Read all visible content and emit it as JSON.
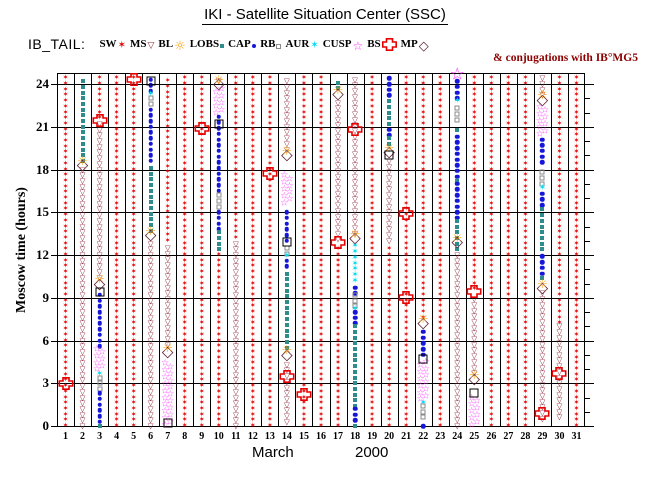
{
  "header": {
    "title": "IKI - Satellite Situation Center (SSC)"
  },
  "legend": {
    "prefix": "IB_TAIL:",
    "note": "& conjugations with IB°MG5",
    "items": [
      {
        "label": "SW",
        "type": "SW"
      },
      {
        "label": "MS",
        "type": "MS"
      },
      {
        "label": "BL",
        "type": "BL"
      },
      {
        "label": "LOBS",
        "type": "LOBS"
      },
      {
        "label": "CAP",
        "type": "CAP"
      },
      {
        "label": "RB",
        "type": "RB"
      },
      {
        "label": "AUR",
        "type": "AUR"
      },
      {
        "label": "CUSP",
        "type": "CUSP"
      },
      {
        "label": "BS",
        "type": "BS"
      },
      {
        "label": "MP",
        "type": "MP"
      }
    ]
  },
  "chart_data": {
    "type": "scatter",
    "title": "IKI - Satellite Situation Center (SSC)",
    "xlabel": {
      "month": "March",
      "year": "2000"
    },
    "ylabel": "Moscow time (hours)",
    "x_ticks": [
      1,
      2,
      3,
      4,
      5,
      6,
      7,
      8,
      9,
      10,
      11,
      12,
      13,
      14,
      15,
      16,
      17,
      18,
      19,
      20,
      21,
      22,
      23,
      24,
      25,
      26,
      27,
      28,
      29,
      30,
      31
    ],
    "y_ticks": [
      0,
      3,
      6,
      9,
      12,
      15,
      18,
      21,
      24
    ],
    "xlim": [
      1,
      31
    ],
    "ylim": [
      0,
      24.8
    ],
    "grid": true,
    "legend_position": "top",
    "symbol_colors": {
      "SW": "#e60000",
      "MS": "#8b2439",
      "BL": "#ff9c00",
      "LOBS": "#2e8c8c",
      "CAP": "#1616d8",
      "RB": "#8a8a8a",
      "AUR": "#00dcf0",
      "CUSP": "#fa28fa",
      "BS": "#e60000",
      "MP": "#5c2233",
      "BLK": "#000000"
    },
    "days": [
      {
        "day": 1,
        "segments": [
          [
            "SW",
            0,
            24.4
          ]
        ],
        "events": [
          [
            "BS",
            2.9
          ]
        ]
      },
      {
        "day": 2,
        "segments": [
          [
            "LOBS",
            18.6,
            24.4
          ],
          [
            "MS",
            0,
            18.1
          ]
        ],
        "events": [
          [
            "MP",
            18.3
          ],
          [
            "BL",
            18.6
          ]
        ]
      },
      {
        "day": 3,
        "segments": [
          [
            "SW",
            21.6,
            24.4
          ],
          [
            "MS",
            10.4,
            21.2
          ],
          [
            "CAP",
            5.6,
            9.2
          ],
          [
            "CUSP",
            3.9,
            5.4
          ],
          [
            "AUR",
            3.65,
            3.65
          ],
          [
            "RB",
            2.6,
            3.5
          ],
          [
            "CAP",
            0.3,
            2.4
          ],
          [
            "LOBS",
            0,
            0.2
          ]
        ],
        "events": [
          [
            "BS",
            21.3
          ],
          [
            "MP",
            10.0
          ],
          [
            "BL",
            10.3
          ],
          [
            "BLK",
            9.4
          ]
        ]
      },
      {
        "day": 4,
        "segments": [
          [
            "SW",
            0,
            24.4
          ]
        ],
        "events": []
      },
      {
        "day": 5,
        "segments": [
          [
            "SW",
            0,
            24.4
          ]
        ],
        "events": [
          [
            "BS",
            24.2
          ]
        ]
      },
      {
        "day": 6,
        "segments": [
          [
            "CAP",
            23.5,
            24.4
          ],
          [
            "AUR",
            23.3,
            23.3
          ],
          [
            "RB",
            22.6,
            23.1
          ],
          [
            "CAP",
            18.6,
            22.4
          ],
          [
            "LOBS",
            13.7,
            18.4
          ],
          [
            "MS",
            0,
            13.1
          ]
        ],
        "events": [
          [
            "BLK",
            24.2
          ],
          [
            "MP",
            13.4
          ],
          [
            "BL",
            13.7
          ]
        ]
      },
      {
        "day": 7,
        "segments": [
          [
            "SW",
            13,
            24.4
          ],
          [
            "MS",
            5.7,
            12.8
          ],
          [
            "CUSP",
            0,
            4.5
          ]
        ],
        "events": [
          [
            "MP",
            5.2
          ],
          [
            "BL",
            5.5
          ],
          [
            "BLK",
            0.2
          ]
        ]
      },
      {
        "day": 8,
        "segments": [
          [
            "SW",
            0,
            24.4
          ]
        ],
        "events": []
      },
      {
        "day": 9,
        "segments": [
          [
            "SW",
            0,
            24.4
          ]
        ],
        "events": [
          [
            "BS",
            20.8
          ]
        ]
      },
      {
        "day": 10,
        "segments": [
          [
            "MS",
            24.2,
            24.5
          ],
          [
            "CUSP",
            21.9,
            23.6
          ],
          [
            "CAP",
            16.5,
            21.7
          ],
          [
            "RB",
            15.4,
            16.3
          ],
          [
            "CAP",
            13.8,
            15.2
          ],
          [
            "LOBS",
            12.4,
            13.6
          ],
          [
            "SW",
            0,
            12.1
          ]
        ],
        "events": [
          [
            "MP",
            24.0
          ],
          [
            "BL",
            24.25
          ],
          [
            "BLK",
            21.2
          ]
        ]
      },
      {
        "day": 11,
        "segments": [
          [
            "SW",
            13.2,
            24.4
          ],
          [
            "MS",
            0,
            12.9
          ]
        ],
        "events": []
      },
      {
        "day": 12,
        "segments": [
          [
            "SW",
            0,
            24.4
          ]
        ],
        "events": []
      },
      {
        "day": 13,
        "segments": [
          [
            "SW",
            0,
            24.4
          ]
        ],
        "events": [
          [
            "BS",
            17.6
          ]
        ]
      },
      {
        "day": 14,
        "segments": [
          [
            "MS",
            19.4,
            24.4
          ],
          [
            "CUSP",
            15.6,
            17.7
          ],
          [
            "CAP",
            13,
            15.2
          ],
          [
            "RB",
            12.1,
            12.8
          ],
          [
            "AUR",
            11.9,
            11.9
          ],
          [
            "CAP",
            11.2,
            11.7
          ],
          [
            "LOBS",
            5.5,
            11
          ],
          [
            "MS",
            0.3,
            4.6
          ]
        ],
        "events": [
          [
            "MP",
            19.0
          ],
          [
            "BL",
            19.3
          ],
          [
            "BLK",
            12.9
          ],
          [
            "MP",
            5.0
          ],
          [
            "BL",
            5.3
          ],
          [
            "BS",
            3.4
          ]
        ]
      },
      {
        "day": 15,
        "segments": [
          [
            "SW",
            0,
            24.4
          ]
        ],
        "events": [
          [
            "BS",
            2.1
          ]
        ]
      },
      {
        "day": 16,
        "segments": [
          [
            "SW",
            0,
            24.4
          ]
        ],
        "events": []
      },
      {
        "day": 17,
        "segments": [
          [
            "LOBS",
            23.7,
            24.4
          ],
          [
            "MS",
            13.1,
            23
          ],
          [
            "SW",
            0,
            12.5
          ]
        ],
        "events": [
          [
            "MP",
            23.3
          ],
          [
            "BL",
            23.6
          ],
          [
            "BS",
            12.8
          ]
        ]
      },
      {
        "day": 18,
        "segments": [
          [
            "MS",
            13.5,
            24.4
          ],
          [
            "AUR",
            10.2,
            12.7
          ],
          [
            "CAP",
            9.3,
            10
          ],
          [
            "RB",
            8.4,
            9.2
          ],
          [
            "AUR",
            8.2,
            8.2
          ],
          [
            "CAP",
            7.2,
            8
          ],
          [
            "LOBS",
            1.4,
            7
          ],
          [
            "CAP",
            0.4,
            1.2
          ],
          [
            "LOBS",
            0,
            0.2
          ]
        ],
        "events": [
          [
            "BS",
            20.7
          ],
          [
            "MP",
            13.2
          ],
          [
            "BL",
            13.5
          ]
        ]
      },
      {
        "day": 19,
        "segments": [
          [
            "SW",
            0,
            24.4
          ]
        ],
        "events": []
      },
      {
        "day": 20,
        "segments": [
          [
            "CAP",
            23.2,
            24.4
          ],
          [
            "LOBS",
            21.2,
            23
          ],
          [
            "CAP",
            20.4,
            21
          ],
          [
            "LOBS",
            19.8,
            20.2
          ],
          [
            "MS",
            13,
            18.7
          ],
          [
            "SW",
            0,
            12.7
          ]
        ],
        "events": [
          [
            "MP",
            19.2
          ],
          [
            "BL",
            19.5
          ],
          [
            "BLK",
            19.0
          ]
        ]
      },
      {
        "day": 21,
        "segments": [
          [
            "SW",
            0,
            24.4
          ]
        ],
        "events": [
          [
            "BS",
            14.8
          ],
          [
            "BS",
            8.9
          ]
        ]
      },
      {
        "day": 22,
        "segments": [
          [
            "SW",
            7.6,
            24.4
          ],
          [
            "CAP",
            5,
            6.6
          ],
          [
            "CUSP",
            1.8,
            4.5
          ],
          [
            "AUR",
            1.6,
            1.6
          ],
          [
            "RB",
            0.6,
            1.4
          ],
          [
            "CAP",
            0,
            0.35
          ]
        ],
        "events": [
          [
            "MP",
            7.2
          ],
          [
            "BL",
            7.5
          ],
          [
            "BLK",
            4.7
          ]
        ]
      },
      {
        "day": 23,
        "segments": [
          [
            "SW",
            0,
            24.4
          ]
        ],
        "events": []
      },
      {
        "day": 24,
        "segments": [
          [
            "CAP",
            23,
            24.2
          ],
          [
            "AUR",
            22.8,
            22.8
          ],
          [
            "RB",
            21.5,
            22.5
          ],
          [
            "LOBS",
            20.8,
            21
          ],
          [
            "CAP",
            17.5,
            20.6
          ],
          [
            "LOBS",
            17.2,
            17.4
          ],
          [
            "CAP",
            14.6,
            17
          ],
          [
            "LOBS",
            12.4,
            14.4
          ],
          [
            "MS",
            0,
            12.1
          ]
        ],
        "events": [
          [
            "STAR",
            24.6
          ],
          [
            "MP",
            12.9
          ],
          [
            "BL",
            13.2
          ]
        ]
      },
      {
        "day": 25,
        "segments": [
          [
            "SW",
            9.6,
            24.4
          ],
          [
            "MS",
            3.7,
            9.1
          ],
          [
            "CUSP",
            0,
            2.1
          ]
        ],
        "events": [
          [
            "BS",
            9.3
          ],
          [
            "MP",
            3.3
          ],
          [
            "BL",
            3.6
          ],
          [
            "BLK",
            2.3
          ]
        ]
      },
      {
        "day": 26,
        "segments": [
          [
            "SW",
            0,
            24.4
          ]
        ],
        "events": []
      },
      {
        "day": 27,
        "segments": [
          [
            "SW",
            0,
            24.4
          ]
        ],
        "events": []
      },
      {
        "day": 28,
        "segments": [
          [
            "SW",
            0,
            24.4
          ]
        ],
        "events": []
      },
      {
        "day": 29,
        "segments": [
          [
            "MS",
            23.2,
            24.4
          ],
          [
            "CUSP",
            20.4,
            22.5
          ],
          [
            "CAP",
            18.5,
            20.1
          ],
          [
            "RB",
            17,
            17.8
          ],
          [
            "AUR",
            16.7,
            16.7
          ],
          [
            "CAP",
            15.5,
            16.5
          ],
          [
            "LOBS",
            12.4,
            15.2
          ],
          [
            "CAP",
            10.7,
            12.2
          ],
          [
            "LOBS",
            10.4,
            10.6
          ],
          [
            "MS",
            0.5,
            9.4
          ]
        ],
        "events": [
          [
            "MP",
            22.9
          ],
          [
            "BL",
            23.2
          ],
          [
            "MP",
            9.7
          ],
          [
            "BL",
            9.95
          ],
          [
            "BS",
            0.8
          ]
        ]
      },
      {
        "day": 30,
        "segments": [
          [
            "SW",
            7.2,
            24.4
          ],
          [
            "MS",
            0.6,
            7
          ]
        ],
        "events": [
          [
            "BS",
            3.6
          ]
        ]
      },
      {
        "day": 31,
        "segments": [
          [
            "SW",
            0,
            24.4
          ]
        ],
        "events": []
      }
    ]
  }
}
